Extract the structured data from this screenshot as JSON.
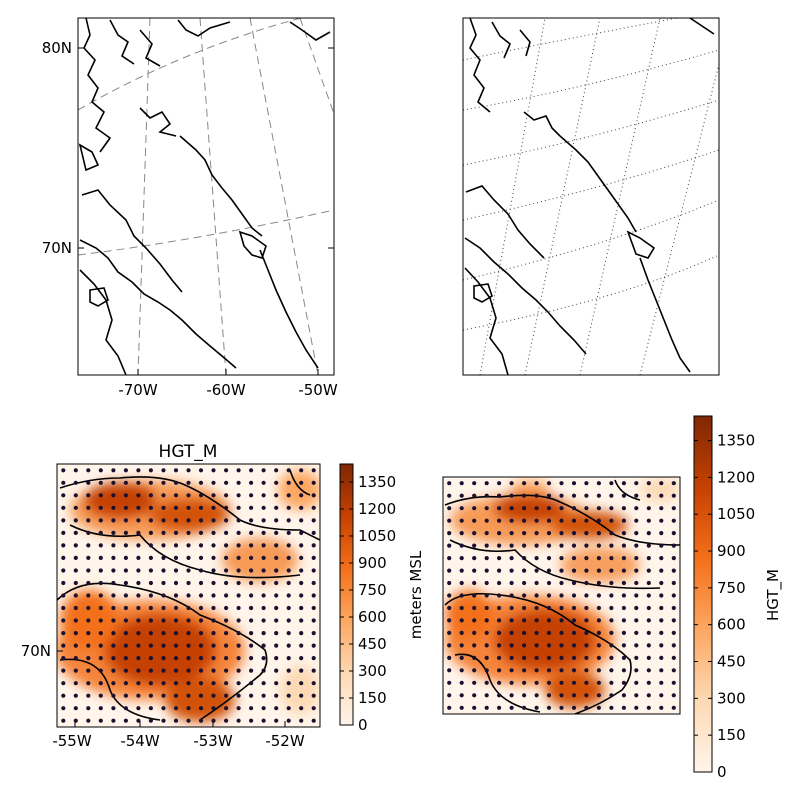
{
  "chart_data": [
    {
      "type": "map",
      "panel": "top-left",
      "graticule": "dashed",
      "x_ticks": [
        "-70W",
        "-60W",
        "-50W"
      ],
      "y_ticks": [
        "70N",
        "80N"
      ]
    },
    {
      "type": "map",
      "panel": "top-right",
      "graticule": "dotted",
      "x_ticks": [],
      "y_ticks": []
    },
    {
      "type": "heatmap",
      "panel": "bottom-left",
      "title": "HGT_M",
      "x_ticks": [
        "-55W",
        "-54W",
        "-53W",
        "-52W"
      ],
      "y_ticks": [
        "70N"
      ],
      "colorbar": {
        "label": "meters MSL",
        "orientation": "vertical",
        "placement": "right",
        "range": [
          0,
          1450
        ],
        "ticks": [
          0,
          150,
          300,
          450,
          600,
          750,
          900,
          1050,
          1200,
          1350
        ],
        "colormap": [
          "#fff5eb",
          "#fdd9b4",
          "#fda762",
          "#f3701b",
          "#c54102",
          "#7f2704"
        ]
      },
      "grid_points": {
        "cols": 21,
        "rows": 21,
        "color": "#1a1030"
      }
    },
    {
      "type": "heatmap",
      "panel": "bottom-right",
      "title": "",
      "x_ticks": [],
      "y_ticks": [],
      "colorbar": {
        "label": "HGT_M",
        "orientation": "vertical",
        "placement": "right",
        "range": [
          0,
          1450
        ],
        "ticks": [
          0,
          150,
          300,
          450,
          600,
          750,
          900,
          1050,
          1200,
          1350
        ],
        "colormap": [
          "#fff5eb",
          "#fdd9b4",
          "#fda762",
          "#f3701b",
          "#c54102",
          "#7f2704"
        ]
      },
      "grid_points": {
        "cols": 19,
        "rows": 19,
        "color": "#1a1030"
      }
    }
  ]
}
